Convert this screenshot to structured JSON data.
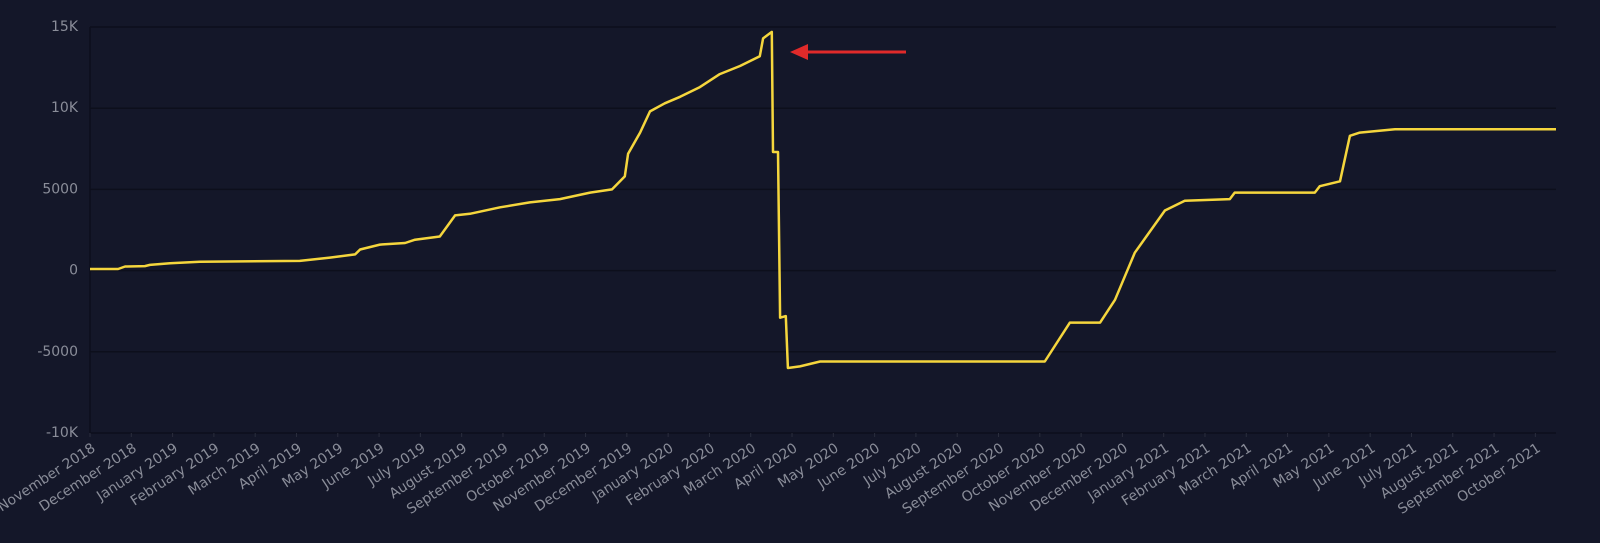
{
  "chart_data": {
    "type": "line",
    "x": [
      0,
      0.68,
      0.85,
      1.33,
      1.45,
      1.94,
      2.66,
      5.08,
      5.81,
      6.42,
      6.54,
      7.02,
      7.63,
      7.87,
      8.47,
      8.84,
      9.2,
      9.93,
      10.65,
      11.38,
      12.11,
      12.64,
      12.95,
      13.03,
      13.32,
      13.56,
      13.92,
      14.29,
      14.77,
      15.25,
      15.74,
      16.22,
      16.3,
      16.51,
      16.54,
      16.66,
      16.71,
      16.85,
      16.9,
      17.19,
      17.68,
      23.12,
      23.73,
      24.46,
      24.82,
      25.3,
      26.03,
      26.51,
      27.6,
      27.72,
      29.66,
      29.78,
      30.27,
      30.51,
      30.75,
      31.6,
      35.5
    ],
    "series": [
      {
        "color": "#f5d63d",
        "values": [
          100,
          100,
          250,
          280,
          350,
          450,
          550,
          600,
          800,
          1000,
          1300,
          1600,
          1700,
          1900,
          2100,
          3400,
          3500,
          3900,
          4200,
          4400,
          4800,
          5000,
          5800,
          7200,
          8500,
          9800,
          10300,
          10700,
          11300,
          12100,
          12600,
          13200,
          14300,
          14700,
          7300,
          7300,
          -2900,
          -2800,
          -6000,
          -5900,
          -5600,
          -5600,
          -3200,
          -3200,
          -1800,
          1100,
          3700,
          4300,
          4400,
          4800,
          4800,
          5200,
          5500,
          8300,
          8500,
          8700,
          8700
        ]
      }
    ],
    "xlim": [
      0,
      35.5
    ],
    "xticks": [
      {
        "value": 0,
        "label": "November 2018"
      },
      {
        "value": 1,
        "label": "December 2018"
      },
      {
        "value": 2,
        "label": "January 2019"
      },
      {
        "value": 3,
        "label": "February 2019"
      },
      {
        "value": 4,
        "label": "March 2019"
      },
      {
        "value": 5,
        "label": "April 2019"
      },
      {
        "value": 6,
        "label": "May 2019"
      },
      {
        "value": 7,
        "label": "June 2019"
      },
      {
        "value": 8,
        "label": "July 2019"
      },
      {
        "value": 9,
        "label": "August 2019"
      },
      {
        "value": 10,
        "label": "September 2019"
      },
      {
        "value": 11,
        "label": "October 2019"
      },
      {
        "value": 12,
        "label": "November 2019"
      },
      {
        "value": 13,
        "label": "December 2019"
      },
      {
        "value": 14,
        "label": "January 2020"
      },
      {
        "value": 15,
        "label": "February 2020"
      },
      {
        "value": 16,
        "label": "March 2020"
      },
      {
        "value": 17,
        "label": "April 2020"
      },
      {
        "value": 18,
        "label": "May 2020"
      },
      {
        "value": 19,
        "label": "June 2020"
      },
      {
        "value": 20,
        "label": "July 2020"
      },
      {
        "value": 21,
        "label": "August 2020"
      },
      {
        "value": 22,
        "label": "September 2020"
      },
      {
        "value": 23,
        "label": "October 2020"
      },
      {
        "value": 24,
        "label": "November 2020"
      },
      {
        "value": 25,
        "label": "December 2020"
      },
      {
        "value": 26,
        "label": "January 2021"
      },
      {
        "value": 27,
        "label": "February 2021"
      },
      {
        "value": 28,
        "label": "March 2021"
      },
      {
        "value": 29,
        "label": "April 2021"
      },
      {
        "value": 30,
        "label": "May 2021"
      },
      {
        "value": 31,
        "label": "June 2021"
      },
      {
        "value": 32,
        "label": "July 2021"
      },
      {
        "value": 33,
        "label": "August 2021"
      },
      {
        "value": 34,
        "label": "September 2021"
      },
      {
        "value": 35,
        "label": "October 2021"
      }
    ],
    "ylim": [
      -10000,
      15000
    ],
    "yticks": [
      {
        "value": -10000,
        "label": "-10K"
      },
      -5000,
      0,
      5000,
      {
        "value": 10000,
        "label": "10K"
      },
      {
        "value": 15000,
        "label": "15K"
      }
    ],
    "grid": true
  }
}
